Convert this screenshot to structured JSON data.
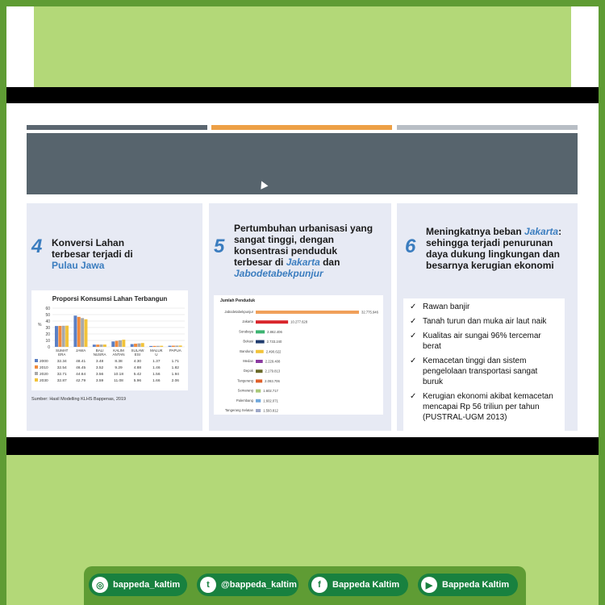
{
  "panel1": {
    "number": "4",
    "title_line1": "Konversi Lahan",
    "title_line2": "terbesar terjadi di",
    "title_highlight": "Pulau Jawa",
    "source": "Sumber: Hasil Modelling KLHS Bappenas, 2019"
  },
  "panel2": {
    "number": "5",
    "title_line1": "Pertumbuhan urbanisasi yang",
    "title_line2": "sangat tinggi, dengan",
    "title_line3": "konsentrasi penduduk",
    "title_line4a": "terbesar di ",
    "title_highlight1": "Jakarta",
    "title_line4b": " dan",
    "title_highlight2": "Jabodetabekpunjur"
  },
  "panel3": {
    "number": "6",
    "title_line1a": "Meningkatnya beban ",
    "title_highlight": "Jakarta",
    "title_line1b": ":",
    "title_line2": "sehingga terjadi penurunan",
    "title_line3": "daya dukung lingkungan dan",
    "title_line4": "besarnya kerugian ekonomi",
    "items": [
      "Rawan banjir",
      "Tanah turun dan muka air laut naik",
      "Kualitas air sungai 96% tercemar berat",
      "Kemacetan tinggi dan sistem pengelolaan transportasi sangat buruk",
      "Kerugian ekonomi akibat kemacetan mencapai Rp 56 triliun per tahun (PUSTRAL-UGM 2013)"
    ]
  },
  "social": {
    "instagram": "bappeda_kaltim",
    "twitter": "@bappeda_kaltim",
    "facebook": "Bappeda Kaltim",
    "youtube": "Bappeda Kaltim"
  },
  "chart_data": [
    {
      "type": "bar",
      "title": "Proporsi Konsumsi Lahan Terbangun",
      "ylabel": "%",
      "ylim": [
        0,
        60
      ],
      "yticks": [
        0,
        10,
        20,
        30,
        40,
        50,
        60
      ],
      "categories": [
        "SUMAT ERA",
        "JAWA",
        "BALI NUSRA",
        "KALIM ANTAN",
        "SULAW ESI",
        "MALUK U",
        "PAPUA"
      ],
      "series": [
        {
          "name": "2000",
          "color": "#5b7fc4",
          "values": [
            32.34,
            48.41,
            3.48,
            8.38,
            4.3,
            1.37,
            1.71
          ]
        },
        {
          "name": "2010",
          "color": "#f08a3c",
          "values": [
            32.54,
            46.45,
            3.52,
            9.29,
            4.88,
            1.46,
            1.82
          ]
        },
        {
          "name": "2020",
          "color": "#a9a9a9",
          "values": [
            32.71,
            44.64,
            3.56,
            10.18,
            5.42,
            1.56,
            1.94
          ]
        },
        {
          "name": "2030",
          "color": "#f2c33a",
          "values": [
            32.87,
            42.79,
            3.59,
            11.08,
            5.96,
            1.66,
            2.06
          ]
        }
      ]
    },
    {
      "type": "bar",
      "title": "Jumlah Penduduk",
      "orientation": "horizontal",
      "categories": [
        "Jabodetabekpunjur",
        "Jakarta",
        "Surabaya",
        "Bekasi",
        "Bandung",
        "Medan",
        "Depok",
        "Tangerang",
        "Semarang",
        "Palembang",
        "Tangerang Selatan"
      ],
      "values": [
        32775946,
        10277628,
        2862406,
        2733240,
        2490622,
        2229408,
        2179813,
        2093706,
        1602717,
        1602071,
        1593812
      ],
      "labels": [
        "32.775.946",
        "10.277.628",
        "2.862.406",
        "2.733.240",
        "2.490.622",
        "2.229.408",
        "2.179.813",
        "2.093.706",
        "1.602.717",
        "1.602.071",
        "1.593.812"
      ],
      "colors": [
        "#f0a05a",
        "#d9252b",
        "#3cb371",
        "#1f3c6e",
        "#f2c33a",
        "#8b3aa0",
        "#6a6a2a",
        "#e0602a",
        "#a8c878",
        "#6fa8dc",
        "#9fa8c8"
      ]
    }
  ]
}
